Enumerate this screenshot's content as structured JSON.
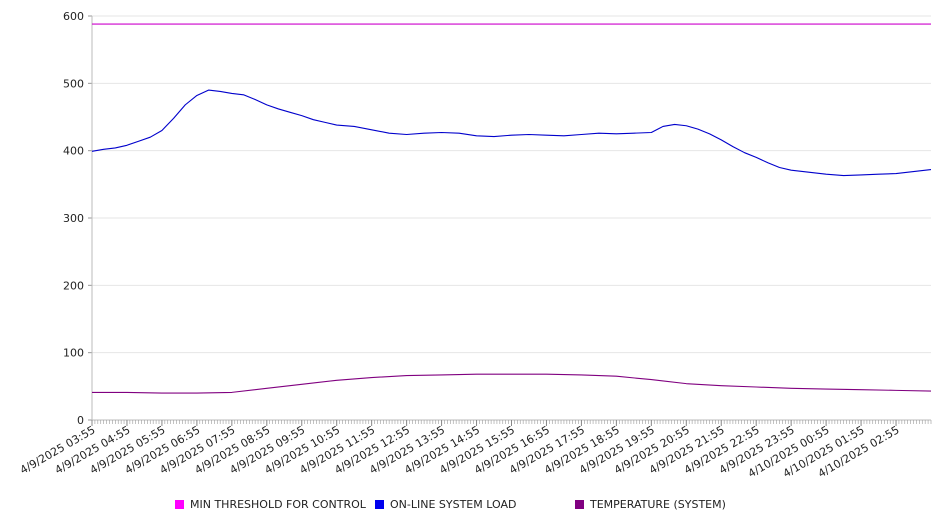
{
  "chart_data": {
    "type": "line",
    "ylim": [
      0,
      600
    ],
    "yticks": [
      0,
      100,
      200,
      300,
      400,
      500,
      600
    ],
    "x_labels": [
      "4/9/2025 03:55",
      "4/9/2025 04:55",
      "4/9/2025 05:55",
      "4/9/2025 06:55",
      "4/9/2025 07:55",
      "4/9/2025 08:55",
      "4/9/2025 09:55",
      "4/9/2025 10:55",
      "4/9/2025 11:55",
      "4/9/2025 12:55",
      "4/9/2025 13:55",
      "4/9/2025 14:55",
      "4/9/2025 15:55",
      "4/9/2025 16:55",
      "4/9/2025 17:55",
      "4/9/2025 18:55",
      "4/9/2025 19:55",
      "4/9/2025 20:55",
      "4/9/2025 21:55",
      "4/9/2025 22:55",
      "4/9/2025 23:55",
      "4/10/2025 00:55",
      "4/10/2025 01:55",
      "4/10/2025 02:55"
    ],
    "x_end": "4/10/2025 03:55",
    "grid": "horizontal",
    "legend_position": "bottom",
    "series": [
      {
        "name": "MIN THRESHOLD FOR CONTROL",
        "color": "#cc00cc",
        "points": [
          [
            "4/9/2025 03:55",
            588
          ],
          [
            "4/10/2025 03:55",
            588
          ]
        ]
      },
      {
        "name": "ON-LINE SYSTEM LOAD",
        "color": "#0000cc",
        "points": [
          [
            "4/9/2025 03:55",
            399
          ],
          [
            "4/9/2025 04:15",
            402
          ],
          [
            "4/9/2025 04:35",
            404
          ],
          [
            "4/9/2025 04:55",
            408
          ],
          [
            "4/9/2025 05:15",
            414
          ],
          [
            "4/9/2025 05:35",
            420
          ],
          [
            "4/9/2025 05:55",
            430
          ],
          [
            "4/9/2025 06:15",
            448
          ],
          [
            "4/9/2025 06:35",
            468
          ],
          [
            "4/9/2025 06:55",
            482
          ],
          [
            "4/9/2025 07:15",
            490
          ],
          [
            "4/9/2025 07:35",
            488
          ],
          [
            "4/9/2025 07:55",
            485
          ],
          [
            "4/9/2025 08:15",
            483
          ],
          [
            "4/9/2025 08:35",
            476
          ],
          [
            "4/9/2025 08:55",
            468
          ],
          [
            "4/9/2025 09:15",
            462
          ],
          [
            "4/9/2025 09:35",
            457
          ],
          [
            "4/9/2025 09:55",
            452
          ],
          [
            "4/9/2025 10:15",
            446
          ],
          [
            "4/9/2025 10:35",
            442
          ],
          [
            "4/9/2025 10:55",
            438
          ],
          [
            "4/9/2025 11:25",
            436
          ],
          [
            "4/9/2025 11:55",
            431
          ],
          [
            "4/9/2025 12:25",
            426
          ],
          [
            "4/9/2025 12:55",
            424
          ],
          [
            "4/9/2025 13:25",
            426
          ],
          [
            "4/9/2025 13:55",
            427
          ],
          [
            "4/9/2025 14:25",
            426
          ],
          [
            "4/9/2025 14:55",
            422
          ],
          [
            "4/9/2025 15:25",
            421
          ],
          [
            "4/9/2025 15:55",
            423
          ],
          [
            "4/9/2025 16:25",
            424
          ],
          [
            "4/9/2025 16:55",
            423
          ],
          [
            "4/9/2025 17:25",
            422
          ],
          [
            "4/9/2025 17:55",
            424
          ],
          [
            "4/9/2025 18:25",
            426
          ],
          [
            "4/9/2025 18:55",
            425
          ],
          [
            "4/9/2025 19:25",
            426
          ],
          [
            "4/9/2025 19:55",
            427
          ],
          [
            "4/9/2025 20:15",
            436
          ],
          [
            "4/9/2025 20:35",
            439
          ],
          [
            "4/9/2025 20:55",
            437
          ],
          [
            "4/9/2025 21:15",
            432
          ],
          [
            "4/9/2025 21:35",
            425
          ],
          [
            "4/9/2025 21:55",
            416
          ],
          [
            "4/9/2025 22:15",
            406
          ],
          [
            "4/9/2025 22:35",
            397
          ],
          [
            "4/9/2025 22:55",
            390
          ],
          [
            "4/9/2025 23:15",
            382
          ],
          [
            "4/9/2025 23:35",
            375
          ],
          [
            "4/9/2025 23:55",
            371
          ],
          [
            "4/10/2025 00:25",
            368
          ],
          [
            "4/10/2025 00:55",
            365
          ],
          [
            "4/10/2025 01:25",
            363
          ],
          [
            "4/10/2025 01:55",
            364
          ],
          [
            "4/10/2025 02:25",
            365
          ],
          [
            "4/10/2025 02:55",
            366
          ],
          [
            "4/10/2025 03:25",
            369
          ],
          [
            "4/10/2025 03:55",
            372
          ]
        ]
      },
      {
        "name": "TEMPERATURE (SYSTEM)",
        "color": "#800080",
        "points": [
          [
            "4/9/2025 03:55",
            41
          ],
          [
            "4/9/2025 04:55",
            41
          ],
          [
            "4/9/2025 05:55",
            40
          ],
          [
            "4/9/2025 06:55",
            40
          ],
          [
            "4/9/2025 07:55",
            41
          ],
          [
            "4/9/2025 08:55",
            47
          ],
          [
            "4/9/2025 09:55",
            53
          ],
          [
            "4/9/2025 10:55",
            59
          ],
          [
            "4/9/2025 11:55",
            63
          ],
          [
            "4/9/2025 12:55",
            66
          ],
          [
            "4/9/2025 13:55",
            67
          ],
          [
            "4/9/2025 14:55",
            68
          ],
          [
            "4/9/2025 15:55",
            68
          ],
          [
            "4/9/2025 16:55",
            68
          ],
          [
            "4/9/2025 17:55",
            67
          ],
          [
            "4/9/2025 18:55",
            65
          ],
          [
            "4/9/2025 19:55",
            60
          ],
          [
            "4/9/2025 20:55",
            54
          ],
          [
            "4/9/2025 21:55",
            51
          ],
          [
            "4/9/2025 22:55",
            49
          ],
          [
            "4/9/2025 23:55",
            47
          ],
          [
            "4/10/2025 00:55",
            46
          ],
          [
            "4/10/2025 01:55",
            45
          ],
          [
            "4/10/2025 02:55",
            44
          ],
          [
            "4/10/2025 03:55",
            43
          ]
        ]
      }
    ]
  }
}
